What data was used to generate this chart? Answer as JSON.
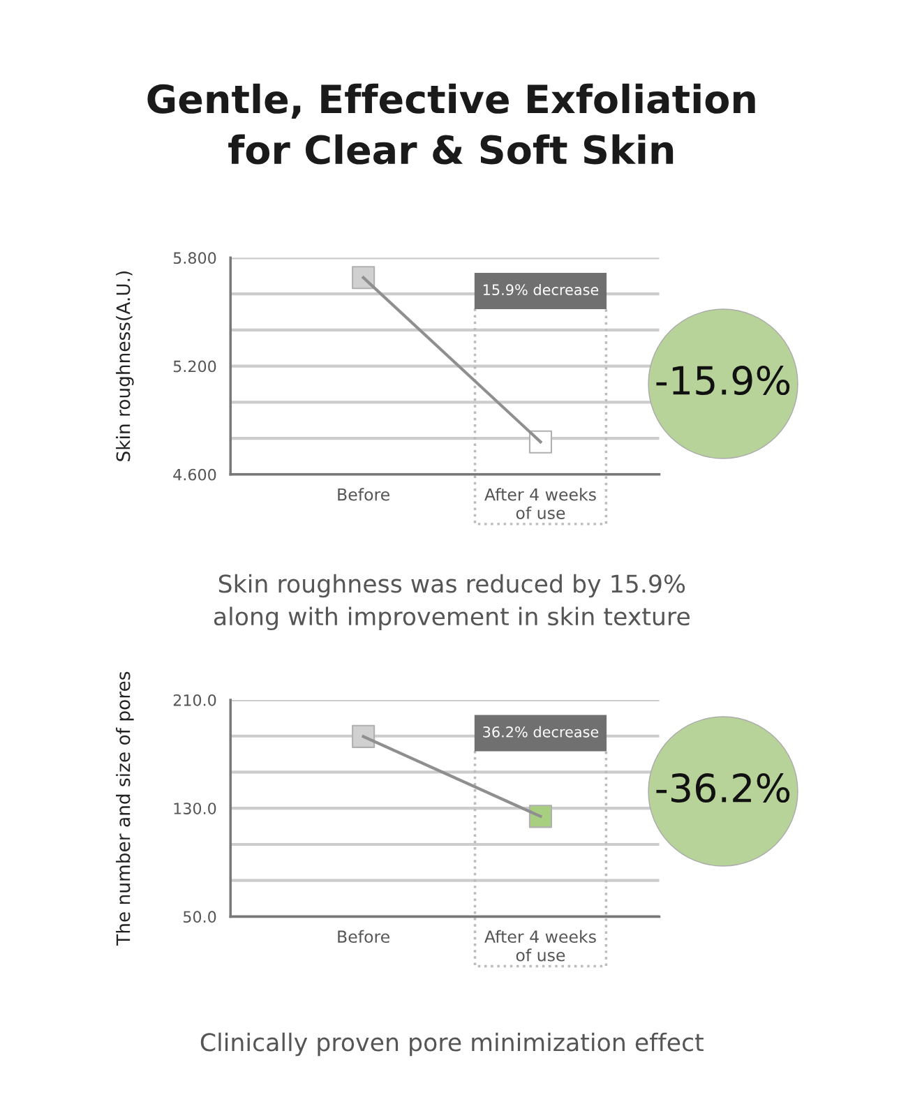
{
  "chart_data": [
    {
      "type": "line",
      "title": "Gentle, Effective Exfoliation\nfor Clear & Soft Skin",
      "ylabel": "Skin roughness(A.U.)",
      "categories": [
        "Before",
        "After 4 weeks\nof use"
      ],
      "series": [
        {
          "color": "#8f8f8f",
          "colors": [
            "#d0d0d0",
            "#ffffff"
          ],
          "values": [
            5.69,
            4.78
          ]
        }
      ],
      "ylim": [
        4.6,
        5.8
      ],
      "yticks": [
        {
          "value": 4.6,
          "label": "4.600"
        },
        {
          "value": 4.8,
          "label": null
        },
        {
          "value": 5.0,
          "label": null
        },
        {
          "value": 5.2,
          "label": "5.200"
        },
        {
          "value": 5.4,
          "label": null
        },
        {
          "value": 5.6,
          "label": null
        },
        {
          "value": 5.8,
          "label": "5.800"
        }
      ],
      "grid": "y",
      "marker": "square",
      "line_style": "solid",
      "annotations": [
        "15.9% decrease",
        "-15.9%",
        "Skin roughness was reduced by 15.9%\nalong with improvement in skin texture"
      ]
    },
    {
      "type": "line",
      "ylabel": "The number and size of pores",
      "categories": [
        "Before",
        "After 4 weeks\nof use"
      ],
      "series": [
        {
          "color": "#8f8f8f",
          "colors": [
            "#d0d0d0",
            "#a8cf80"
          ],
          "values": [
            183,
            124
          ]
        }
      ],
      "ylim": [
        50,
        210
      ],
      "yticks": [
        {
          "value": 50,
          "label": "50.0"
        },
        {
          "value": 76.7,
          "label": null
        },
        {
          "value": 103.3,
          "label": null
        },
        {
          "value": 130,
          "label": "130.0"
        },
        {
          "value": 156.7,
          "label": null
        },
        {
          "value": 183.3,
          "label": null
        },
        {
          "value": 210,
          "label": "210.0"
        }
      ],
      "grid": "y",
      "marker": "square",
      "line_style": "solid",
      "annotations": [
        "36.2% decrease",
        "-36.2%",
        "Clinically proven pore minimization effect"
      ]
    }
  ]
}
